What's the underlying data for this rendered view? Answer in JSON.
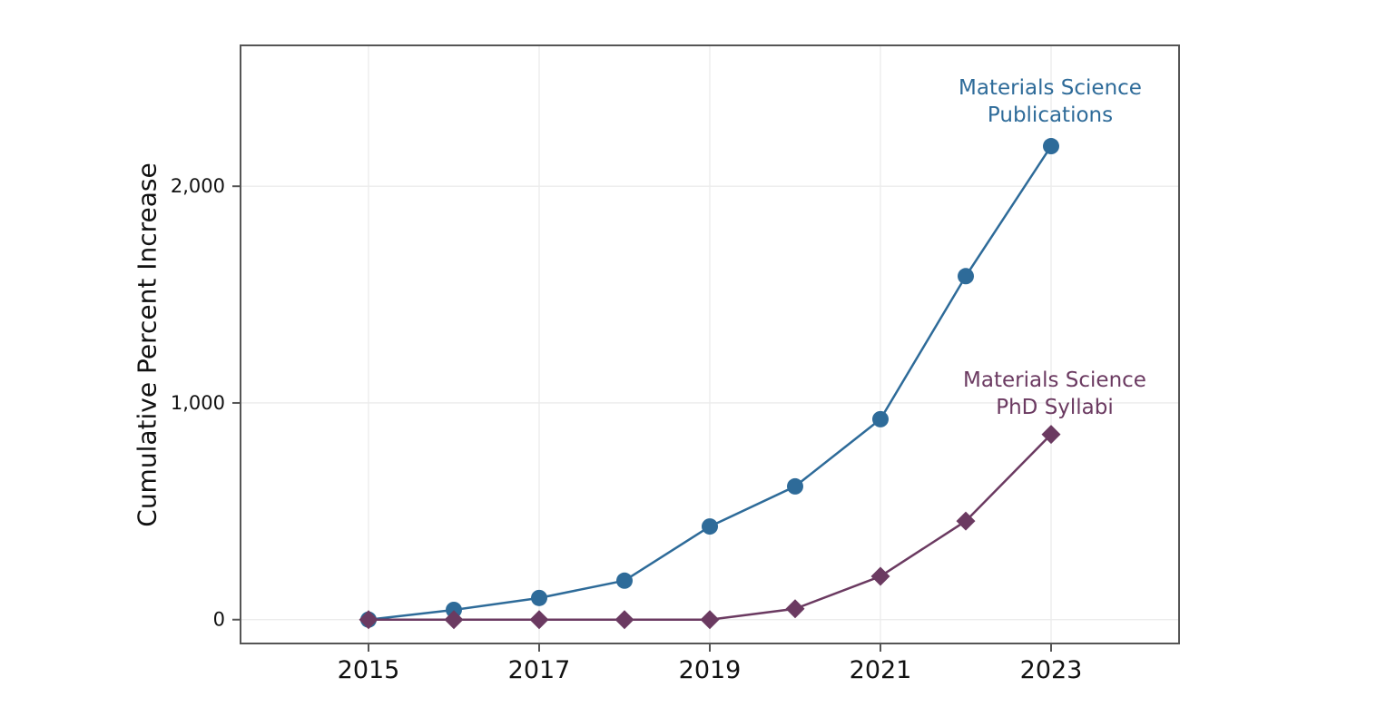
{
  "chart_data": {
    "type": "line",
    "title": "",
    "xlabel": "",
    "ylabel": "Cumulative Percent Increase",
    "x": [
      2015,
      2016,
      2017,
      2018,
      2019,
      2020,
      2021,
      2022,
      2023
    ],
    "series": [
      {
        "name": "Materials Science Publications",
        "annotation": "Materials Science\nPublications",
        "marker": "circle",
        "color": "#2e6b99",
        "values": [
          0,
          45,
          100,
          180,
          430,
          615,
          925,
          1585,
          2185
        ]
      },
      {
        "name": "Materials Science PhD Syllabi",
        "annotation": "Materials Science\nPhD Syllabi",
        "marker": "diamond",
        "color": "#6b3a61",
        "values": [
          0,
          0,
          0,
          0,
          0,
          50,
          200,
          455,
          855
        ]
      }
    ],
    "xticks": [
      2015,
      2017,
      2019,
      2021,
      2023
    ],
    "xtick_labels": [
      "2015",
      "2017",
      "2019",
      "2021",
      "2023"
    ],
    "yticks": [
      0,
      1000,
      2000
    ],
    "ytick_labels": [
      "0",
      "1,000",
      "2,000"
    ],
    "xlim": [
      2013.5,
      2024.5
    ],
    "ylim": [
      -110,
      2650
    ],
    "grid": true,
    "legend_position": "inline annotations above final data points"
  },
  "style_colors": {
    "grid": "#ececec",
    "spine": "#555555",
    "tick_label": "#111111",
    "background": "#ffffff"
  }
}
